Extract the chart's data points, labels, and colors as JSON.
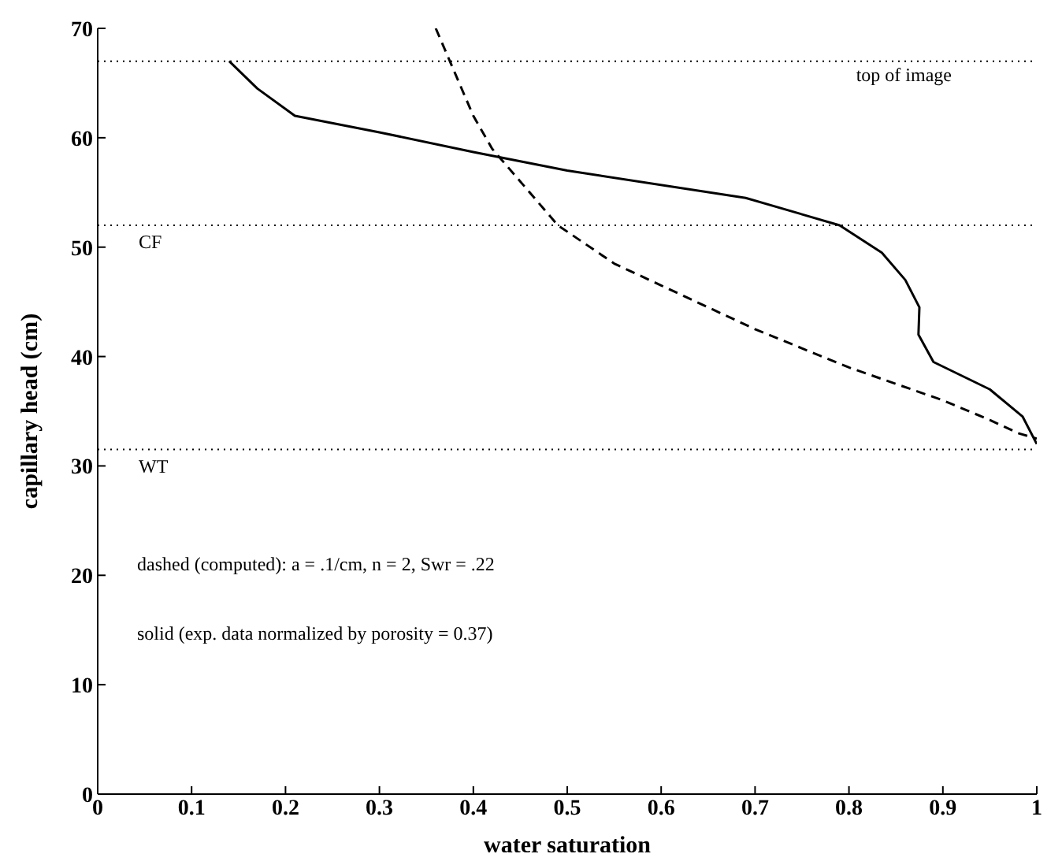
{
  "chart_data": {
    "type": "line",
    "xlabel": "water saturation",
    "ylabel": "capillary head (cm)",
    "xlim": [
      0,
      1
    ],
    "xticks": [
      0,
      0.1,
      0.2,
      0.3,
      0.4,
      0.5,
      0.6,
      0.7,
      0.8,
      0.9,
      1
    ],
    "ylim": [
      0,
      70
    ],
    "yticks": [
      0,
      10,
      20,
      30,
      40,
      50,
      60,
      70
    ],
    "grid": false,
    "legend": false,
    "marker": "none",
    "series": [
      {
        "color": "#000000",
        "line_style": "solid",
        "x": [
          0.14,
          0.17,
          0.21,
          0.3,
          0.4,
          0.5,
          0.69,
          0.79,
          0.835,
          0.86,
          0.875,
          0.874,
          0.89,
          0.95,
          0.985,
          1
        ],
        "values": [
          67,
          64.5,
          62,
          60.5,
          58.7,
          57,
          54.5,
          52,
          49.5,
          47,
          44.5,
          42,
          39.5,
          37,
          34.5,
          32
        ]
      },
      {
        "color": "#000000",
        "line_style": "dashed",
        "x": [
          0.36,
          0.375,
          0.4,
          0.42,
          0.46,
          0.49,
          0.55,
          0.6,
          0.7,
          0.8,
          0.9,
          0.95,
          0.98,
          1
        ],
        "values": [
          70,
          67,
          62,
          59,
          55,
          52,
          48.5,
          46.5,
          42.5,
          39,
          36,
          34.2,
          33,
          32.5
        ]
      }
    ],
    "ref_lines": [
      {
        "axis": "y",
        "value": 67,
        "label": "top of image",
        "color": "#000000",
        "line_style": "dotted"
      },
      {
        "axis": "y",
        "value": 52,
        "label": "CF",
        "color": "#000000",
        "line_style": "dotted"
      },
      {
        "axis": "y",
        "value": 31.5,
        "label": "WT",
        "color": "#000000",
        "line_style": "dotted"
      }
    ],
    "annotations": [
      "dashed (computed): a = .1/cm, n = 2, Swr = .22",
      "solid (exp. data normalized by porosity = 0.37)"
    ]
  }
}
